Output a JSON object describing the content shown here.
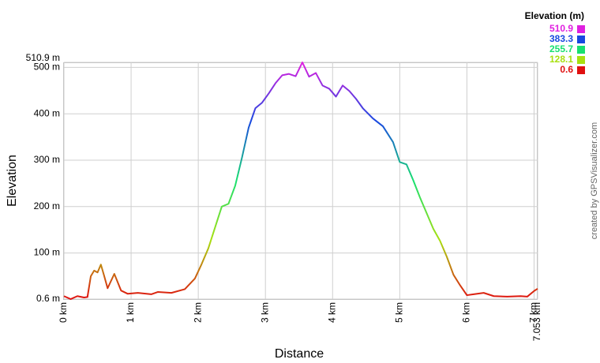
{
  "chart_data": {
    "type": "line",
    "x_label": "Distance",
    "y_label": "Elevation",
    "credit": "created by GPSVisualizer.com",
    "x": [
      0,
      0.1,
      0.2,
      0.3,
      0.35,
      0.4,
      0.45,
      0.5,
      0.55,
      0.6,
      0.65,
      0.75,
      0.85,
      0.95,
      1.1,
      1.3,
      1.4,
      1.6,
      1.8,
      1.95,
      2.05,
      2.15,
      2.25,
      2.35,
      2.45,
      2.55,
      2.65,
      2.75,
      2.85,
      2.95,
      3.05,
      3.15,
      3.25,
      3.35,
      3.45,
      3.55,
      3.65,
      3.75,
      3.85,
      3.95,
      4.05,
      4.15,
      4.25,
      4.35,
      4.45,
      4.6,
      4.75,
      4.9,
      5.0,
      5.1,
      5.2,
      5.3,
      5.4,
      5.5,
      5.6,
      5.7,
      5.8,
      5.9,
      6.0,
      6.1,
      6.25,
      6.4,
      6.6,
      6.8,
      6.9,
      7.0,
      7.053
    ],
    "values": [
      7,
      0.6,
      7,
      4,
      5,
      50,
      62,
      58,
      75,
      50,
      24,
      55,
      19,
      12,
      14,
      11,
      16,
      14,
      22,
      45,
      76,
      110,
      155,
      200,
      206,
      245,
      305,
      370,
      412,
      424,
      444,
      466,
      483,
      486,
      481,
      510.9,
      480,
      488,
      461,
      454,
      437,
      461,
      449,
      432,
      412,
      390,
      373,
      339,
      296,
      291,
      257,
      220,
      186,
      152,
      126,
      92,
      53,
      30,
      9,
      11,
      14,
      7,
      6,
      7,
      6,
      18,
      23
    ],
    "xlim": [
      0,
      7.053
    ],
    "xticks": [
      {
        "value": 0,
        "label": "0 km"
      },
      {
        "value": 1,
        "label": "1 km"
      },
      {
        "value": 2,
        "label": "2 km"
      },
      {
        "value": 3,
        "label": "3 km"
      },
      {
        "value": 4,
        "label": "4 km"
      },
      {
        "value": 5,
        "label": "5 km"
      },
      {
        "value": 6,
        "label": "6 km"
      },
      {
        "value": 7,
        "label": "7 km"
      },
      {
        "value": 7.053,
        "label": "7.053 km"
      }
    ],
    "ylim": [
      0.6,
      510.9
    ],
    "yticks": [
      {
        "value": 0.6,
        "label": "0.6 m"
      },
      {
        "value": 100,
        "label": "100 m"
      },
      {
        "value": 200,
        "label": "200 m"
      },
      {
        "value": 300,
        "label": "300 m"
      },
      {
        "value": 400,
        "label": "400 m"
      },
      {
        "value": 500,
        "label": "500 m"
      },
      {
        "value": 510.9,
        "label": "510.9 m"
      }
    ],
    "grid": true,
    "color_scale": {
      "title": "Elevation (m)",
      "stops": [
        {
          "value": 510.9,
          "color": "#e020e0"
        },
        {
          "value": 383.3,
          "color": "#1848e0"
        },
        {
          "value": 255.7,
          "color": "#18e070"
        },
        {
          "value": 128.1,
          "color": "#a8e010"
        },
        {
          "value": 0.6,
          "color": "#e01010"
        }
      ]
    }
  }
}
